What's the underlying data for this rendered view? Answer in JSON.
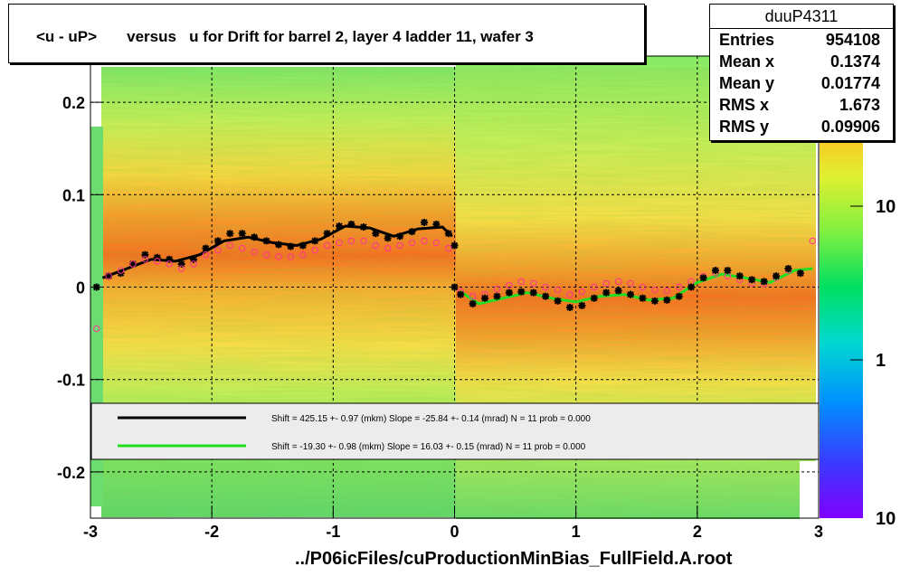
{
  "title": "<u - uP>       versus   u for Drift for barrel 2, layer 4 ladder 11, wafer 3",
  "stats": {
    "name": "duuP4311",
    "rows": [
      {
        "label": "Entries",
        "value": "954108"
      },
      {
        "label": "Mean x",
        "value": "0.1374"
      },
      {
        "label": "Mean y",
        "value": "0.01774"
      },
      {
        "label": "RMS x",
        "value": "1.673"
      },
      {
        "label": "RMS y",
        "value": "0.09906"
      }
    ]
  },
  "footer": "../P06icFiles/cuProductionMinBias_FullField.A.root",
  "legend": [
    {
      "color": "#000000",
      "text": "Shift =   425.15 +- 0.97 (mkm) Slope =   -25.84 +- 0.14 (mrad)  N = 11 prob = 0.000"
    },
    {
      "color": "#22dd22",
      "text": "Shift =   -19.30 +- 0.98 (mkm) Slope =    16.03 +- 0.15 (mrad)  N = 11 prob = 0.000"
    }
  ],
  "chart_data": {
    "type": "heatmap",
    "xlim": [
      -3,
      3
    ],
    "ylim": [
      -0.25,
      0.25
    ],
    "x_ticks": [
      "-3",
      "-2",
      "-1",
      "0",
      "1",
      "2",
      "3"
    ],
    "y_ticks": [
      "0.2",
      "0.1",
      "0",
      "-0.1",
      "-0.2"
    ],
    "color_scale": {
      "type": "log",
      "labels": [
        "10",
        "1",
        "10"
      ]
    },
    "grid": true,
    "series": [
      {
        "color": "#000000",
        "marker": "star",
        "points": [
          [
            -2.95,
            0.0
          ],
          [
            -2.85,
            0.012
          ],
          [
            -2.75,
            0.015
          ],
          [
            -2.65,
            0.025
          ],
          [
            -2.55,
            0.035
          ],
          [
            -2.45,
            0.032
          ],
          [
            -2.35,
            0.03
          ],
          [
            -2.25,
            0.025
          ],
          [
            -2.15,
            0.03
          ],
          [
            -2.05,
            0.042
          ],
          [
            -1.95,
            0.05
          ],
          [
            -1.85,
            0.058
          ],
          [
            -1.75,
            0.058
          ],
          [
            -1.65,
            0.054
          ],
          [
            -1.55,
            0.05
          ],
          [
            -1.45,
            0.046
          ],
          [
            -1.35,
            0.044
          ],
          [
            -1.25,
            0.045
          ],
          [
            -1.15,
            0.05
          ],
          [
            -1.05,
            0.058
          ],
          [
            -0.95,
            0.066
          ],
          [
            -0.85,
            0.068
          ],
          [
            -0.75,
            0.065
          ],
          [
            -0.65,
            0.058
          ],
          [
            -0.55,
            0.053
          ],
          [
            -0.45,
            0.055
          ],
          [
            -0.35,
            0.06
          ],
          [
            -0.25,
            0.07
          ],
          [
            -0.15,
            0.068
          ],
          [
            -0.05,
            0.058
          ],
          [
            0.0,
            0.045
          ]
        ]
      },
      {
        "color": "#ff3399",
        "marker": "open-circle",
        "points": [
          [
            -2.95,
            -0.045
          ],
          [
            -2.85,
            0.012
          ],
          [
            -2.75,
            0.018
          ],
          [
            -2.65,
            0.025
          ],
          [
            -2.55,
            0.03
          ],
          [
            -2.45,
            0.028
          ],
          [
            -2.35,
            0.025
          ],
          [
            -2.25,
            0.02
          ],
          [
            -2.15,
            0.025
          ],
          [
            -2.05,
            0.035
          ],
          [
            -1.95,
            0.04
          ],
          [
            -1.85,
            0.045
          ],
          [
            -1.75,
            0.042
          ],
          [
            -1.65,
            0.038
          ],
          [
            -1.55,
            0.035
          ],
          [
            -1.45,
            0.033
          ],
          [
            -1.35,
            0.033
          ],
          [
            -1.25,
            0.035
          ],
          [
            -1.15,
            0.04
          ],
          [
            -1.05,
            0.045
          ],
          [
            -0.95,
            0.048
          ],
          [
            -0.85,
            0.05
          ],
          [
            -0.75,
            0.05
          ],
          [
            -0.65,
            0.045
          ],
          [
            -0.55,
            0.042
          ],
          [
            -0.45,
            0.045
          ],
          [
            -0.35,
            0.048
          ],
          [
            -0.25,
            0.05
          ],
          [
            -0.15,
            0.048
          ],
          [
            -0.05,
            0.042
          ],
          [
            0.05,
            -0.005
          ],
          [
            0.15,
            -0.01
          ],
          [
            0.25,
            -0.008
          ],
          [
            0.35,
            -0.002
          ],
          [
            0.45,
            0.002
          ],
          [
            0.55,
            0.006
          ],
          [
            0.65,
            0.004
          ],
          [
            0.75,
            0.0
          ],
          [
            0.85,
            -0.003
          ],
          [
            0.95,
            -0.008
          ],
          [
            1.05,
            -0.005
          ],
          [
            1.15,
            0.0
          ],
          [
            1.25,
            0.004
          ],
          [
            1.35,
            0.006
          ],
          [
            1.45,
            0.004
          ],
          [
            1.55,
            0.0
          ],
          [
            1.65,
            -0.003
          ],
          [
            1.75,
            -0.004
          ],
          [
            1.85,
            0.0
          ],
          [
            1.95,
            0.006
          ],
          [
            2.05,
            0.012
          ],
          [
            2.15,
            0.015
          ],
          [
            2.25,
            0.012
          ],
          [
            2.35,
            0.008
          ],
          [
            2.45,
            0.004
          ],
          [
            2.55,
            0.003
          ],
          [
            2.65,
            0.01
          ],
          [
            2.75,
            0.018
          ],
          [
            2.85,
            0.015
          ],
          [
            2.95,
            0.05
          ]
        ]
      },
      {
        "color": "#000000",
        "marker": "star",
        "points": [
          [
            0.0,
            0.0
          ],
          [
            0.05,
            -0.008
          ],
          [
            0.15,
            -0.018
          ],
          [
            0.25,
            -0.012
          ],
          [
            0.35,
            -0.01
          ],
          [
            0.45,
            -0.006
          ],
          [
            0.55,
            -0.005
          ],
          [
            0.65,
            -0.006
          ],
          [
            0.75,
            -0.01
          ],
          [
            0.85,
            -0.015
          ],
          [
            0.95,
            -0.022
          ],
          [
            1.05,
            -0.02
          ],
          [
            1.15,
            -0.012
          ],
          [
            1.25,
            -0.006
          ],
          [
            1.35,
            -0.004
          ],
          [
            1.45,
            -0.008
          ],
          [
            1.55,
            -0.012
          ],
          [
            1.65,
            -0.015
          ],
          [
            1.75,
            -0.014
          ],
          [
            1.85,
            -0.01
          ],
          [
            1.95,
            0.0
          ],
          [
            2.05,
            0.01
          ],
          [
            2.15,
            0.018
          ],
          [
            2.25,
            0.018
          ],
          [
            2.35,
            0.012
          ],
          [
            2.45,
            0.008
          ],
          [
            2.55,
            0.006
          ],
          [
            2.65,
            0.012
          ],
          [
            2.75,
            0.02
          ],
          [
            2.85,
            0.015
          ]
        ]
      }
    ],
    "fits": [
      {
        "color": "#000000",
        "points": [
          [
            -2.9,
            0.01
          ],
          [
            -2.7,
            0.02
          ],
          [
            -2.5,
            0.03
          ],
          [
            -2.3,
            0.028
          ],
          [
            -2.1,
            0.035
          ],
          [
            -1.9,
            0.05
          ],
          [
            -1.7,
            0.054
          ],
          [
            -1.5,
            0.048
          ],
          [
            -1.3,
            0.045
          ],
          [
            -1.1,
            0.052
          ],
          [
            -0.9,
            0.066
          ],
          [
            -0.7,
            0.064
          ],
          [
            -0.5,
            0.055
          ],
          [
            -0.3,
            0.063
          ],
          [
            -0.1,
            0.065
          ],
          [
            -0.02,
            0.055
          ]
        ]
      },
      {
        "color": "#22dd22",
        "points": [
          [
            0.05,
            -0.005
          ],
          [
            0.2,
            -0.018
          ],
          [
            0.4,
            -0.012
          ],
          [
            0.6,
            -0.006
          ],
          [
            0.8,
            -0.012
          ],
          [
            1.0,
            -0.016
          ],
          [
            1.2,
            -0.01
          ],
          [
            1.4,
            -0.008
          ],
          [
            1.6,
            -0.014
          ],
          [
            1.8,
            -0.012
          ],
          [
            2.0,
            0.005
          ],
          [
            2.2,
            0.014
          ],
          [
            2.4,
            0.01
          ],
          [
            2.6,
            0.005
          ],
          [
            2.8,
            0.018
          ],
          [
            2.95,
            0.02
          ]
        ]
      }
    ]
  }
}
